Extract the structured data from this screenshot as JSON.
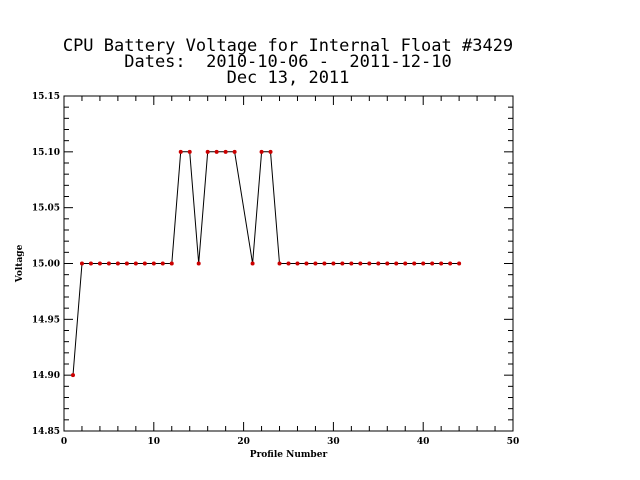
{
  "title": {
    "line1": "CPU Battery Voltage for Internal Float #3429",
    "line2": "Dates:  2010-10-06 -  2011-12-10",
    "line3": "Dec 13, 2011"
  },
  "colors": {
    "line": "#000000",
    "marker": "#cc0000",
    "axes": "#000000",
    "background": "#ffffff"
  },
  "chart_data": {
    "type": "line",
    "xlabel": "Profile Number",
    "ylabel": "Voltage",
    "xlim": [
      0,
      50
    ],
    "ylim": [
      14.85,
      15.15
    ],
    "xticks": [
      0,
      10,
      20,
      30,
      40,
      50
    ],
    "xtick_labels": [
      "0",
      "10",
      "20",
      "30",
      "40",
      "50"
    ],
    "yticks": [
      14.85,
      14.9,
      14.95,
      15.0,
      15.05,
      15.1,
      15.15
    ],
    "ytick_labels": [
      "14.85",
      "14.90",
      "14.95",
      "15.00",
      "15.05",
      "15.10",
      "15.15"
    ],
    "grid": false,
    "series": [
      {
        "x": [
          1,
          2,
          3,
          4,
          5,
          6,
          7,
          8,
          9,
          10,
          11,
          12,
          13,
          14,
          15,
          16,
          17,
          18,
          19,
          20,
          21,
          22,
          23,
          24,
          25,
          26,
          27,
          28,
          29,
          30,
          31,
          32,
          33,
          34,
          35,
          36,
          37,
          38,
          39,
          40,
          41,
          42,
          43,
          44
        ],
        "values": [
          14.9,
          15.0,
          15.0,
          15.0,
          15.0,
          15.0,
          15.0,
          15.0,
          15.0,
          15.0,
          15.0,
          15.0,
          15.1,
          15.1,
          15.0,
          15.1,
          15.1,
          15.1,
          15.1,
          null,
          15.0,
          15.1,
          15.1,
          15.0,
          15.0,
          15.0,
          15.0,
          15.0,
          15.0,
          15.0,
          15.0,
          15.0,
          15.0,
          15.0,
          15.0,
          15.0,
          15.0,
          15.0,
          15.0,
          15.0,
          15.0,
          15.0,
          15.0,
          15.0
        ]
      }
    ]
  }
}
